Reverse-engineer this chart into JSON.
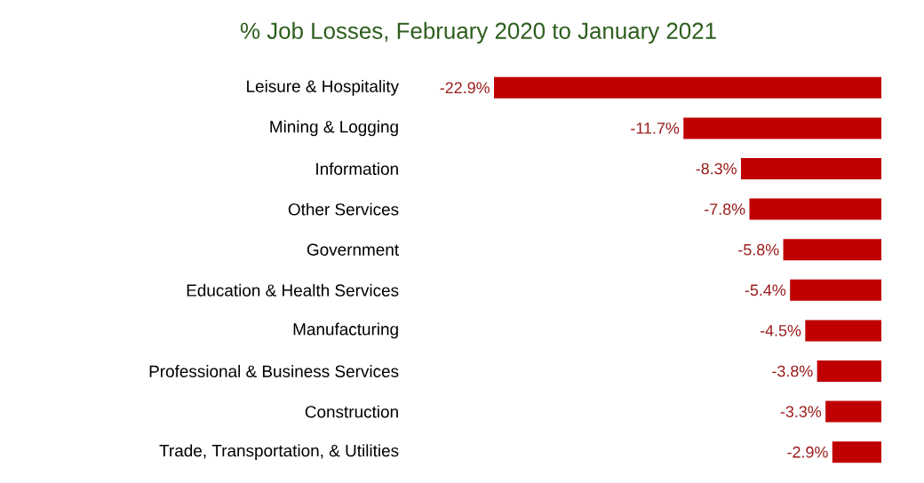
{
  "chart_data": {
    "type": "bar",
    "orientation": "horizontal",
    "title": "% Job Losses, February 2020 to January 2021",
    "categories": [
      "Leisure & Hospitality",
      "Mining & Logging",
      "Information",
      "Other Services",
      "Government",
      "Education & Health Services",
      "Manufacturing",
      "Professional & Business Services",
      "Construction",
      "Trade, Transportation, & Utilities"
    ],
    "values": [
      -22.9,
      -11.7,
      -8.3,
      -7.8,
      -5.8,
      -5.4,
      -4.5,
      -3.8,
      -3.3,
      -2.9
    ],
    "value_labels": [
      "-22.9%",
      "-11.7%",
      "-8.3%",
      "-7.8%",
      "-5.8%",
      "-5.4%",
      "-4.5%",
      "-3.8%",
      "-3.3%",
      "-2.9%"
    ],
    "color": "#c00000",
    "xlim": [
      -22.9,
      0
    ],
    "tick_labels": "y"
  }
}
